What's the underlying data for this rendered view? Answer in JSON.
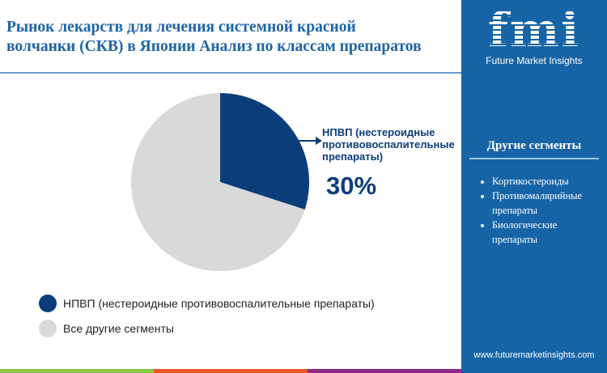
{
  "header": {
    "title_line1": "Рынок лекарств для лечения системной красной",
    "title_line2": "волчанки (СКВ) в Японии Анализ по классам препаратов"
  },
  "logo": {
    "mark": "fmi",
    "text": "Future Market Insights"
  },
  "sidebar": {
    "title": "Другие сегменты",
    "items": [
      "Кортикостероиды",
      "Противомалярийные препараты",
      "Биологические препараты"
    ],
    "url": "www.futuremarketinsights.com"
  },
  "colors": {
    "nsaid": "#0b3d7a",
    "others": "#d9d9d9",
    "sidebar": "#1664a6",
    "stripes": [
      "#8dc63f",
      "#e8582a",
      "#8b2c87"
    ]
  },
  "chart_data": {
    "type": "pie",
    "slices": [
      {
        "name": "НПВП (нестероидные противовоспалительные препараты)",
        "value": 30,
        "color": "#0b3d7a"
      },
      {
        "name": "Все другие сегменты",
        "value": 70,
        "color": "#d9d9d9"
      }
    ],
    "callout": {
      "label": "НПВП (нестероидные противовоспалительные препараты)",
      "line1": "НПВП (нестероидные",
      "line2": "противовоспалительные",
      "line3": "препараты)",
      "value_label": "30%"
    },
    "legend_position": "bottom-left"
  }
}
